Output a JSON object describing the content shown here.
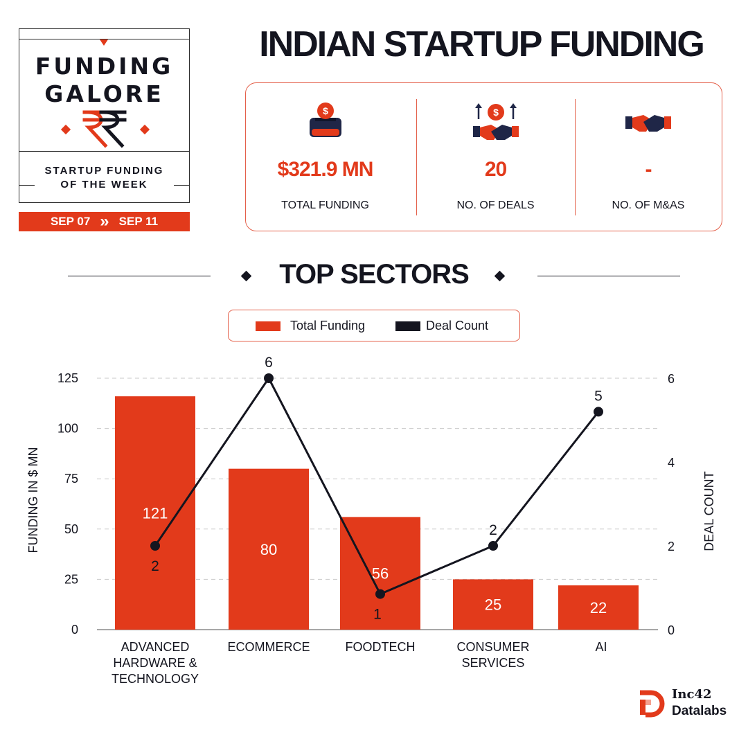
{
  "badge": {
    "line1": "FUNDING",
    "line2": "GALORE",
    "sub1": "STARTUP FUNDING",
    "sub2": "OF THE WEEK",
    "date_start": "SEP 07",
    "date_sep": "»",
    "date_end": "SEP 11"
  },
  "title": "INDIAN STARTUP FUNDING",
  "stats": [
    {
      "value": "$321.9 MN",
      "label": "TOTAL FUNDING",
      "icon": "money-box-icon"
    },
    {
      "value": "20",
      "label": "NO. OF DEALS",
      "icon": "handshake-money-icon"
    },
    {
      "value": "-",
      "label": "NO. OF M&AS",
      "icon": "handshake-icon"
    }
  ],
  "section_title": "TOP SECTORS",
  "colors": {
    "accent": "#e23a1b",
    "dark": "#14151f",
    "border": "#e4604a"
  },
  "chart_data": {
    "type": "bar",
    "categories": [
      "ADVANCED HARDWARE & TECHNOLOGY",
      "ECOMMERCE",
      "FOODTECH",
      "CONSUMER SERVICES",
      "AI"
    ],
    "category_lines": [
      [
        "ADVANCED",
        "HARDWARE &",
        "TECHNOLOGY"
      ],
      [
        "ECOMMERCE"
      ],
      [
        "FOODTECH"
      ],
      [
        "CONSUMER",
        "SERVICES"
      ],
      [
        "AI"
      ]
    ],
    "series": [
      {
        "name": "Total Funding",
        "type": "bar",
        "axis": "left",
        "values": [
          121,
          80,
          56,
          25,
          22
        ],
        "labels": [
          "121",
          "80",
          "56",
          "25",
          "22"
        ],
        "color": "#e23a1b"
      },
      {
        "name": "Deal Count",
        "type": "line",
        "axis": "right",
        "values": [
          2,
          6,
          1,
          2,
          5
        ],
        "labels": [
          "2",
          "6",
          "1",
          "2",
          "5"
        ],
        "color": "#14151f"
      }
    ],
    "ylabel": "FUNDING IN $ MN",
    "y2label": "DEAL COUNT",
    "ylim": [
      0,
      125
    ],
    "yticks": [
      "0",
      "25",
      "50",
      "75",
      "100",
      "125"
    ],
    "y2lim": [
      0,
      6
    ],
    "y2ticks": [
      "0",
      "2",
      "4",
      "6"
    ],
    "legend": "top-center",
    "grid": true
  },
  "logo": {
    "line1": "Inc42",
    "line2": "Datalabs"
  }
}
